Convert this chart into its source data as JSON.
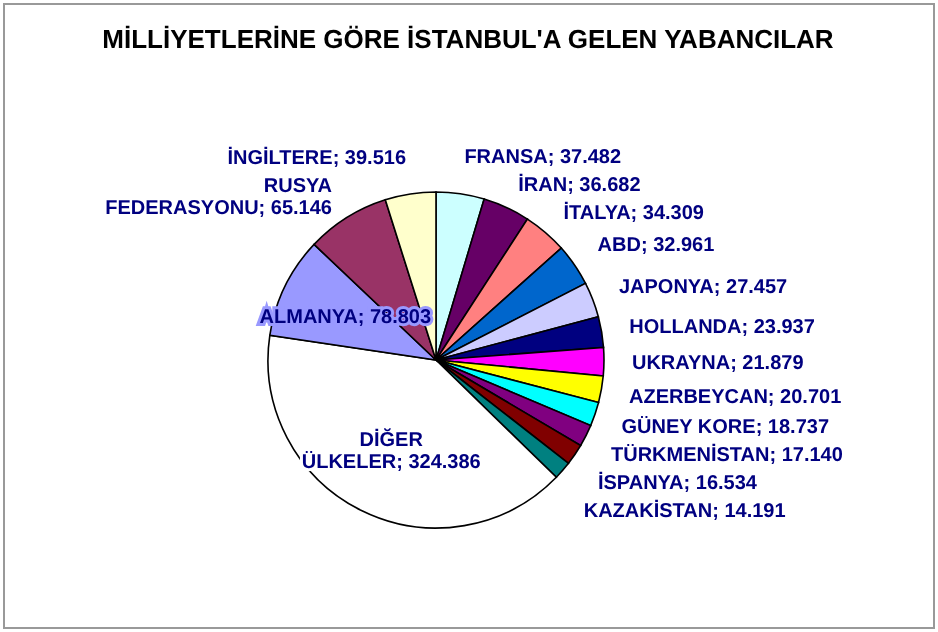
{
  "chart_data": {
    "type": "pie",
    "title": "MİLLİYETLERİNE GÖRE İSTANBUL'A GELEN YABANCILAR",
    "categories": [
      "FRANSA",
      "İRAN",
      "İTALYA",
      "ABD",
      "JAPONYA",
      "HOLLANDA",
      "UKRAYNA",
      "AZERBEYCAN",
      "GÜNEY KORE",
      "TÜRKMENİSTAN",
      "İSPANYA",
      "KAZAKİSTAN",
      "DİĞER ÜLKELER",
      "ALMANYA",
      "RUSYA FEDERASYONU",
      "İNGİLTERE"
    ],
    "values": [
      37482,
      36682,
      34309,
      32961,
      27457,
      23937,
      21879,
      20701,
      18737,
      17140,
      16534,
      14191,
      324386,
      78803,
      65146,
      39516
    ],
    "value_labels": [
      "37.482",
      "36.682",
      "34.309",
      "32.961",
      "27.457",
      "23.937",
      "21.879",
      "20.701",
      "18.737",
      "17.140",
      "16.534",
      "14.191",
      "324.386",
      "78.803",
      "65.146",
      "39.516"
    ],
    "colors": [
      "#ccffff",
      "#660066",
      "#ff8080",
      "#0066cc",
      "#ccccff",
      "#000080",
      "#ff00ff",
      "#ffff00",
      "#00ffff",
      "#800080",
      "#800000",
      "#008080",
      "#ffffff",
      "#9999ff",
      "#993366",
      "#ffffcc"
    ]
  }
}
